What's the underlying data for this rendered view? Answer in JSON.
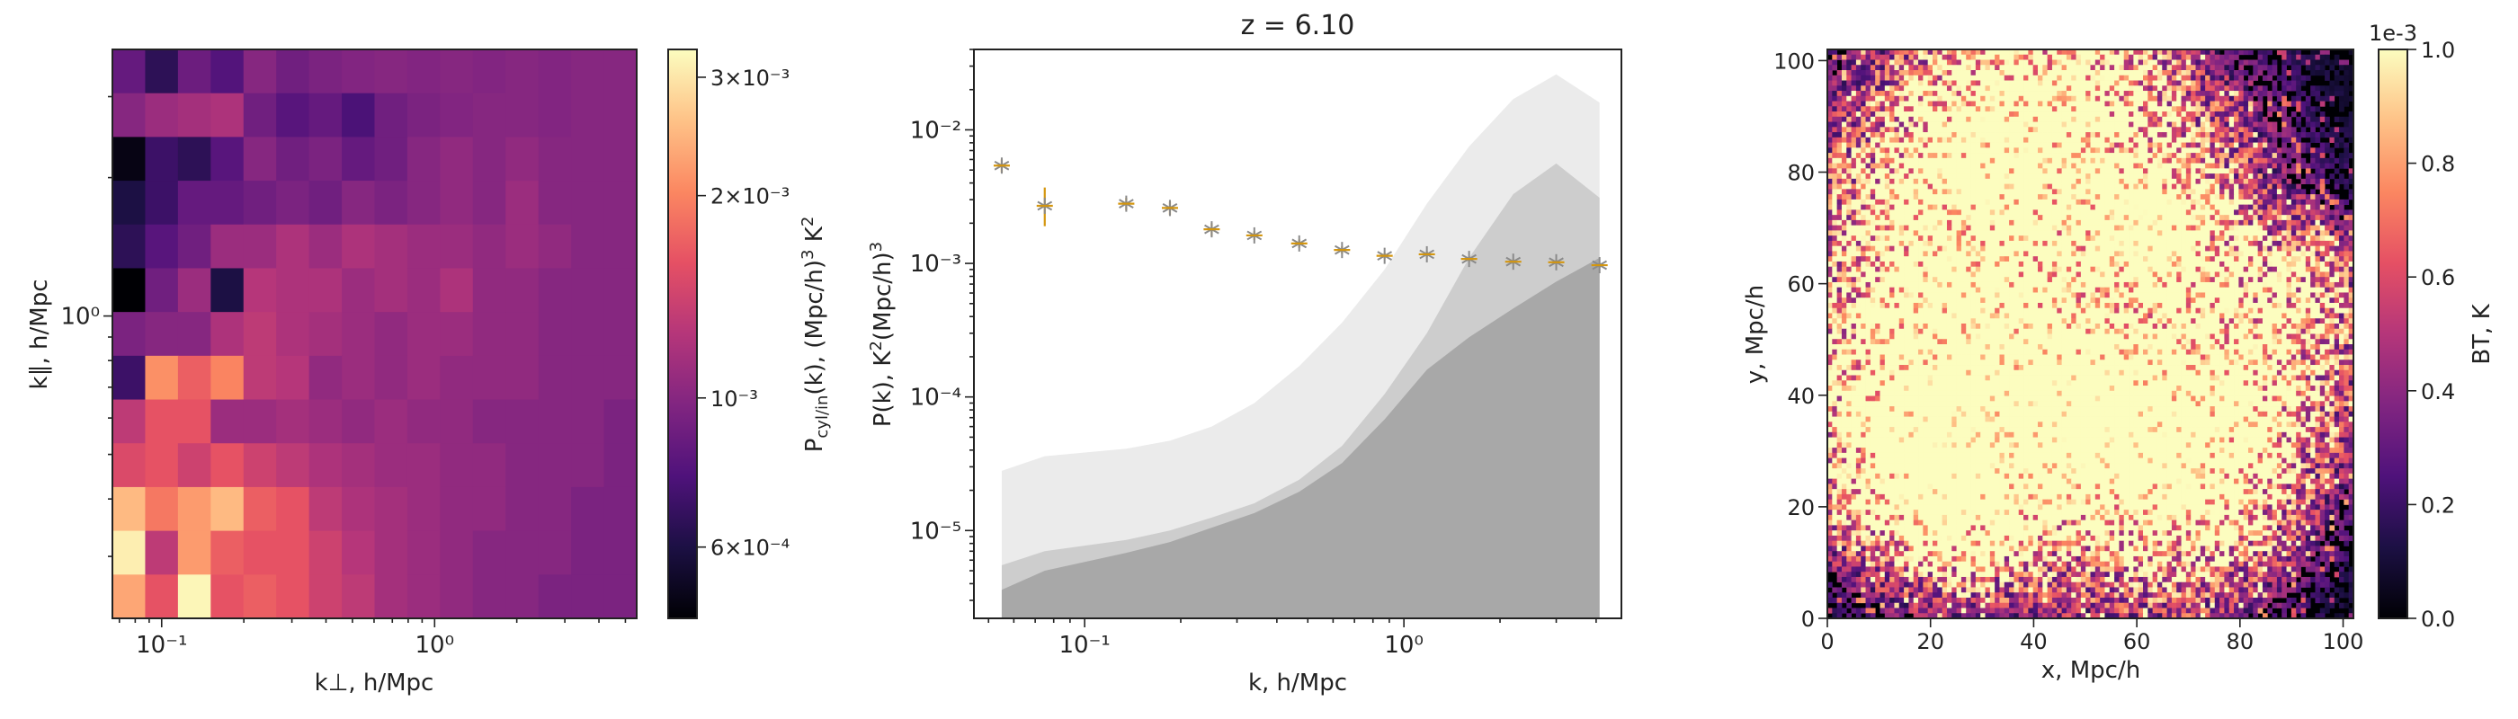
{
  "colors": {
    "magma": [
      "#000004",
      "#1c1044",
      "#4f127b",
      "#812581",
      "#b5367a",
      "#e55064",
      "#fb8761",
      "#fec287",
      "#fcfdbf"
    ],
    "errorbar": "#d4960e",
    "marker": "#8a8a8a",
    "band_light": "#ebebeb",
    "band_mid": "#cdcdcd",
    "band_dark": "#a8a8a8"
  },
  "chart_data": [
    {
      "type": "heatmap",
      "xlabel": "k⊥, h/Mpc",
      "ylabel": "k∥, h/Mpc",
      "xscale": "log",
      "yscale": "log",
      "xlim": [
        0.066,
        5.5
      ],
      "ylim": [
        0.22,
        3.8
      ],
      "x_ticks": [
        {
          "v": 0.1,
          "label": "10⁻¹"
        },
        {
          "v": 1,
          "label": "10⁰"
        }
      ],
      "y_ticks": [
        {
          "v": 1,
          "label": "10⁰"
        }
      ],
      "colorbar": {
        "label": "P_cyl/in(k), (Mpc/h)³ K²",
        "label_main": "P",
        "label_sub": "cyl/in",
        "label_rest": "(k), (Mpc/h)",
        "label_sup": "3",
        "label_end": " K",
        "label_sup2": "2",
        "scale": "log",
        "range": [
          0.00047,
          0.0033
        ],
        "ticks": [
          {
            "v": 0.0006,
            "label": "6×10⁻⁴"
          },
          {
            "v": 0.001,
            "label": "10⁻³"
          },
          {
            "v": 0.002,
            "label": "2×10⁻³"
          },
          {
            "v": 0.003,
            "label": "3×10⁻³"
          }
        ]
      },
      "rows_top_to_bottom": [
        [
          0.00085,
          0.00065,
          0.00088,
          0.00078,
          0.001,
          0.0009,
          0.00095,
          0.00098,
          0.001,
          0.00098,
          0.001,
          0.00098,
          0.001,
          0.00098,
          0.001,
          0.001
        ],
        [
          0.001,
          0.0011,
          0.00115,
          0.0012,
          0.0009,
          0.0008,
          0.00085,
          0.00075,
          0.0009,
          0.00095,
          0.00098,
          0.001,
          0.001,
          0.00098,
          0.001,
          0.001
        ],
        [
          0.0005,
          0.0007,
          0.00065,
          0.0008,
          0.001,
          0.0009,
          0.00095,
          0.00085,
          0.0009,
          0.001,
          0.00105,
          0.001,
          0.00105,
          0.001,
          0.001,
          0.001
        ],
        [
          0.0006,
          0.0007,
          0.00085,
          0.00085,
          0.0009,
          0.00095,
          0.0009,
          0.001,
          0.00095,
          0.001,
          0.00105,
          0.001,
          0.0011,
          0.001,
          0.001,
          0.001
        ],
        [
          0.00065,
          0.0008,
          0.0009,
          0.0011,
          0.0011,
          0.0012,
          0.0011,
          0.0012,
          0.00115,
          0.0011,
          0.0011,
          0.00105,
          0.0011,
          0.00105,
          0.001,
          0.001
        ],
        [
          0.00045,
          0.0009,
          0.0011,
          0.0006,
          0.00125,
          0.0012,
          0.0012,
          0.0011,
          0.00115,
          0.0011,
          0.0012,
          0.00105,
          0.00105,
          0.001,
          0.001,
          0.001
        ],
        [
          0.00095,
          0.001,
          0.001,
          0.0012,
          0.0013,
          0.0012,
          0.00115,
          0.0011,
          0.00105,
          0.0011,
          0.0011,
          0.00105,
          0.00105,
          0.001,
          0.001,
          0.001
        ],
        [
          0.0007,
          0.0021,
          0.0017,
          0.002,
          0.0013,
          0.00125,
          0.00105,
          0.0011,
          0.00105,
          0.0011,
          0.00105,
          0.00105,
          0.00105,
          0.001,
          0.001,
          0.001
        ],
        [
          0.0013,
          0.0016,
          0.0016,
          0.0011,
          0.0011,
          0.00115,
          0.0011,
          0.00105,
          0.0011,
          0.00105,
          0.00105,
          0.001,
          0.001,
          0.001,
          0.001,
          0.00095
        ],
        [
          0.0015,
          0.0016,
          0.0014,
          0.0016,
          0.0014,
          0.0013,
          0.0012,
          0.00115,
          0.0011,
          0.0011,
          0.00105,
          0.00105,
          0.001,
          0.001,
          0.001,
          0.00095
        ],
        [
          0.0025,
          0.0019,
          0.0022,
          0.0025,
          0.0017,
          0.0016,
          0.0013,
          0.0012,
          0.00115,
          0.0011,
          0.00105,
          0.00105,
          0.001,
          0.001,
          0.00095,
          0.00095
        ],
        [
          0.0031,
          0.0013,
          0.0022,
          0.0017,
          0.0016,
          0.0016,
          0.0014,
          0.00125,
          0.00115,
          0.0011,
          0.00105,
          0.001,
          0.001,
          0.001,
          0.00095,
          0.00095
        ],
        [
          0.0023,
          0.0016,
          0.0032,
          0.0016,
          0.0017,
          0.0016,
          0.0014,
          0.0013,
          0.00115,
          0.0011,
          0.00105,
          0.001,
          0.001,
          0.00095,
          0.00095,
          0.00095
        ]
      ]
    },
    {
      "type": "line",
      "title": "z = 6.10",
      "xlabel": "k, h/Mpc",
      "ylabel_main": "P(k), K",
      "ylabel_sup": "2",
      "ylabel_rest": "(Mpc/h)",
      "ylabel_sup2": "3",
      "xscale": "log",
      "yscale": "log",
      "xlim": [
        0.045,
        4.8
      ],
      "ylim": [
        2.2e-06,
        0.04
      ],
      "x_ticks": [
        {
          "v": 0.1,
          "label": "10⁻¹"
        },
        {
          "v": 1,
          "label": "10⁰"
        }
      ],
      "y_ticks": [
        {
          "v": 1e-05,
          "label": "10⁻⁵"
        },
        {
          "v": 0.0001,
          "label": "10⁻⁴"
        },
        {
          "v": 0.001,
          "label": "10⁻³"
        },
        {
          "v": 0.01,
          "label": "10⁻²"
        }
      ],
      "x": [
        0.055,
        0.075,
        0.135,
        0.185,
        0.25,
        0.34,
        0.47,
        0.64,
        0.87,
        1.18,
        1.6,
        2.2,
        3.0,
        4.1
      ],
      "series": [
        {
          "values": [
            0.0054,
            0.0027,
            0.0028,
            0.0026,
            0.0018,
            0.00162,
            0.00141,
            0.00126,
            0.00114,
            0.00117,
            0.00108,
            0.00103,
            0.00102,
            0.00097
          ],
          "yerr_low": [
            0.0048,
            0.0019,
            0.0025,
            0.0023,
            0.0016,
            0.0015,
            0.00131,
            0.00118,
            0.00108,
            0.00111,
            0.00103,
            0.00099,
            0.00098,
            0.00093
          ],
          "yerr_high": [
            0.006,
            0.0037,
            0.0031,
            0.0029,
            0.002,
            0.00174,
            0.00151,
            0.00134,
            0.0012,
            0.00123,
            0.00113,
            0.00107,
            0.00106,
            0.00101
          ]
        }
      ],
      "bands": {
        "x": [
          0.055,
          0.075,
          0.135,
          0.185,
          0.25,
          0.34,
          0.47,
          0.64,
          0.87,
          1.18,
          1.6,
          2.2,
          3.0,
          4.1
        ],
        "light_top": [
          2.8e-05,
          3.6e-05,
          4.1e-05,
          4.7e-05,
          6e-05,
          9e-05,
          0.00017,
          0.00036,
          0.0009,
          0.0028,
          0.0075,
          0.017,
          0.026,
          0.016
        ],
        "mid_top": [
          5.5e-06,
          7e-06,
          8.5e-06,
          1e-05,
          1.25e-05,
          1.6e-05,
          2.4e-05,
          4.3e-05,
          0.000105,
          0.0003,
          0.0011,
          0.0033,
          0.0056,
          0.0031
        ],
        "dark_top": [
          3.6e-06,
          5e-06,
          6.8e-06,
          8.2e-06,
          1.05e-05,
          1.35e-05,
          1.95e-05,
          3.2e-05,
          6.8e-05,
          0.00016,
          0.00028,
          0.00046,
          0.00073,
          0.0011
        ]
      }
    },
    {
      "type": "heatmap",
      "xlabel": "x, Mpc/h",
      "ylabel": "y, Mpc/h",
      "xlim": [
        0,
        102
      ],
      "ylim": [
        0,
        102
      ],
      "x_ticks": [
        0,
        20,
        40,
        60,
        80,
        100
      ],
      "y_ticks": [
        0,
        20,
        40,
        60,
        80,
        100
      ],
      "colorbar": {
        "label": "BT, K",
        "offset": "1e-3",
        "range": [
          0,
          1.0
        ],
        "ticks": [
          "0.0",
          "0.2",
          "0.4",
          "0.6",
          "0.8",
          "1.0"
        ]
      }
    }
  ]
}
